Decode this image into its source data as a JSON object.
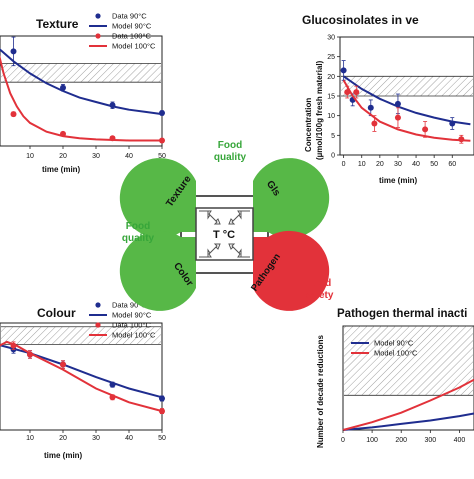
{
  "center": {
    "label": "T °C",
    "petals": {
      "texture": "Texture",
      "gls": "Gls",
      "color": "Color",
      "pathogen": "Pathogen"
    },
    "labels": {
      "food_quality_top": [
        "Food",
        "quality"
      ],
      "food_quality_left": [
        "Food",
        "quality"
      ],
      "food_safety": [
        "Food",
        "safety"
      ]
    },
    "colors": {
      "green": "#57b847",
      "red": "#e2323a",
      "quality_text": "#37a63a",
      "safety_text": "#e2323a"
    }
  },
  "chart_data": [
    {
      "id": "texture",
      "type": "line",
      "title": "Texture",
      "xlabel": "time (min)",
      "ylabel": "",
      "x_ticks": [
        10,
        20,
        30,
        40,
        50
      ],
      "legend": [
        "Data 90°C",
        "Model 90°C",
        "Data 100°C",
        "Model 100°C"
      ],
      "series": [
        {
          "name": "Data 90°C",
          "kind": "points",
          "color": "#1f2d8f",
          "x": [
            5,
            20,
            35,
            50
          ],
          "y": [
            0.86,
            0.53,
            0.37,
            0.3
          ],
          "err": [
            0.13,
            0.03,
            0.03,
            0.02
          ]
        },
        {
          "name": "Model 90°C",
          "kind": "line",
          "color": "#1f2d8f",
          "x": [
            0,
            5,
            10,
            15,
            20,
            25,
            30,
            35,
            40,
            45,
            50
          ],
          "y": [
            0.9,
            0.77,
            0.66,
            0.57,
            0.5,
            0.44,
            0.4,
            0.36,
            0.33,
            0.31,
            0.29
          ]
        },
        {
          "name": "Data 100°C",
          "kind": "points",
          "color": "#e2323a",
          "x": [
            5,
            20,
            35,
            50
          ],
          "y": [
            0.29,
            0.11,
            0.07,
            0.05
          ],
          "err": [
            0.02,
            0.01,
            0.01,
            0.01
          ]
        },
        {
          "name": "Model 100°C",
          "kind": "line",
          "color": "#e2323a",
          "x": [
            0,
            2,
            4,
            6,
            8,
            10,
            15,
            20,
            25,
            30,
            40,
            50
          ],
          "y": [
            0.9,
            0.66,
            0.48,
            0.36,
            0.27,
            0.21,
            0.13,
            0.09,
            0.07,
            0.06,
            0.05,
            0.05
          ]
        }
      ],
      "shaded_band": [
        0.58,
        0.75
      ]
    },
    {
      "id": "glucosinolates",
      "type": "line",
      "title": "Glucosinolates in ve",
      "xlabel": "time (min)",
      "ylabel": [
        "Concentration",
        "(µmol/100g fresh material)"
      ],
      "x_ticks": [
        0,
        10,
        20,
        30,
        40,
        50,
        60
      ],
      "y_ticks": [
        0,
        5,
        10,
        15,
        20,
        25,
        30
      ],
      "ylim": [
        0,
        30
      ],
      "xlim": [
        0,
        70
      ],
      "series": [
        {
          "name": "Data 90°C",
          "kind": "points",
          "color": "#1f2d8f",
          "x": [
            0,
            5,
            15,
            30,
            60
          ],
          "y": [
            21.5,
            14,
            12,
            13,
            8
          ],
          "err": [
            2.5,
            1.5,
            2,
            2.5,
            1.5
          ]
        },
        {
          "name": "Model 90°C",
          "kind": "line",
          "color": "#1f2d8f",
          "x": [
            0,
            10,
            20,
            30,
            40,
            50,
            60,
            70
          ],
          "y": [
            20,
            16.8,
            14.3,
            12.3,
            10.7,
            9.5,
            8.5,
            7.8
          ]
        },
        {
          "name": "Data 100°C",
          "kind": "points",
          "color": "#e2323a",
          "x": [
            2,
            7,
            17,
            30,
            45,
            65
          ],
          "y": [
            16,
            16,
            8,
            9.5,
            6.5,
            4
          ],
          "err": [
            1.5,
            1.5,
            2,
            2.5,
            2,
            1
          ]
        },
        {
          "name": "Model 100°C",
          "kind": "line",
          "color": "#e2323a",
          "x": [
            0,
            5,
            10,
            20,
            30,
            40,
            50,
            60,
            70
          ],
          "y": [
            19,
            15,
            12,
            8.5,
            6.5,
            5.2,
            4.4,
            3.9,
            3.6
          ]
        }
      ],
      "shaded_band": [
        15,
        20
      ]
    },
    {
      "id": "colour",
      "type": "line",
      "title": "Colour",
      "xlabel": "time (min)",
      "ylabel": "",
      "x_ticks": [
        0,
        10,
        20,
        30,
        40,
        50
      ],
      "xlim": [
        0,
        50
      ],
      "legend": [
        "Data 90°C",
        "Model 90°C",
        "Data 100°C",
        "Model 100°C"
      ],
      "series": [
        {
          "name": "Data 90°C",
          "kind": "points",
          "color": "#1f2d8f",
          "x": [
            0,
            5,
            10,
            20,
            35,
            50
          ],
          "y": [
            0.7,
            0.64,
            0.6,
            0.52,
            0.36,
            0.25
          ],
          "err": [
            0.04,
            0.03,
            0.03,
            0.03,
            0.02,
            0.02
          ]
        },
        {
          "name": "Model 90°C",
          "kind": "line",
          "color": "#1f2d8f",
          "x": [
            0,
            10,
            20,
            30,
            40,
            50
          ],
          "y": [
            0.68,
            0.61,
            0.52,
            0.42,
            0.33,
            0.26
          ]
        },
        {
          "name": "Data 100°C",
          "kind": "points",
          "color": "#e2323a",
          "x": [
            0,
            5,
            10,
            20,
            35,
            50
          ],
          "y": [
            0.66,
            0.67,
            0.6,
            0.52,
            0.26,
            0.15
          ],
          "err": [
            0.03,
            0.03,
            0.03,
            0.03,
            0.02,
            0.02
          ]
        },
        {
          "name": "Model 100°C",
          "kind": "line",
          "color": "#e2323a",
          "x": [
            0,
            3,
            6,
            10,
            20,
            30,
            40,
            50
          ],
          "y": [
            0.66,
            0.7,
            0.67,
            0.61,
            0.48,
            0.33,
            0.22,
            0.15
          ]
        }
      ],
      "shaded_band": [
        0.68,
        0.82
      ]
    },
    {
      "id": "pathogen",
      "type": "line",
      "title": "Pathogen thermal inacti",
      "xlabel": "time (min)",
      "ylabel": "Number of decade reductions",
      "x_ticks": [
        0,
        100,
        200,
        300,
        400
      ],
      "xlim": [
        0,
        450
      ],
      "legend": [
        "Model 90°C",
        "Model 100°C"
      ],
      "series": [
        {
          "name": "Model 90°C",
          "kind": "line",
          "color": "#1f2d8f",
          "x": [
            0,
            100,
            200,
            300,
            400,
            450
          ],
          "y": [
            0,
            0.3,
            0.7,
            1.1,
            1.6,
            1.9
          ]
        },
        {
          "name": "Model 100°C",
          "kind": "line",
          "color": "#e2323a",
          "x": [
            0,
            100,
            200,
            300,
            400,
            450
          ],
          "y": [
            0,
            0.9,
            2.0,
            3.4,
            4.9,
            5.8
          ]
        }
      ],
      "ylim": [
        0,
        12
      ],
      "shaded_band": [
        4,
        12
      ]
    }
  ]
}
